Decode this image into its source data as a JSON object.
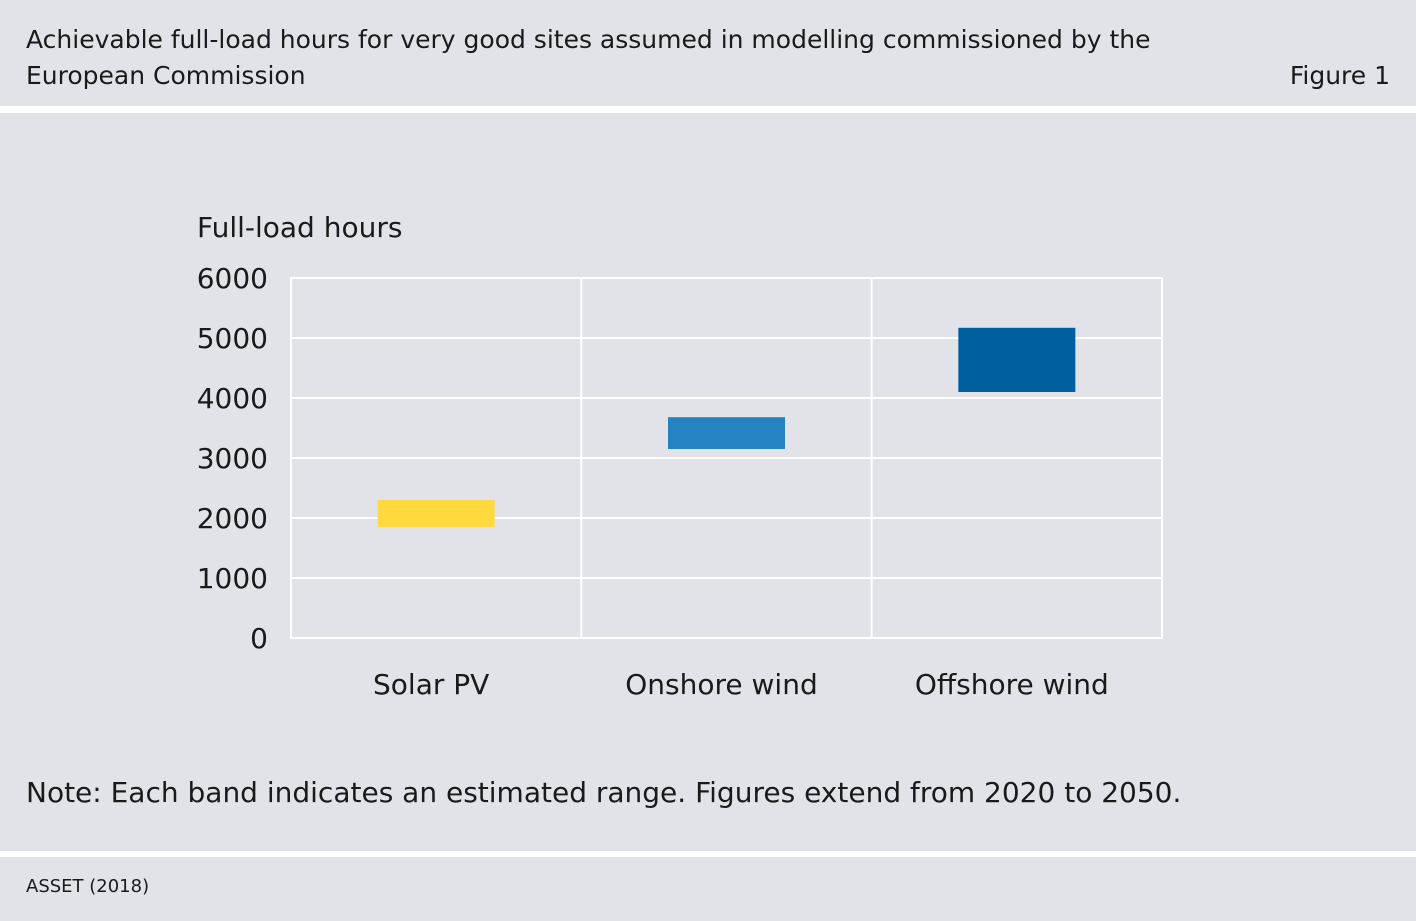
{
  "header": {
    "title": "Achievable full-load hours for very good sites assumed in modelling commissioned by the European Commission",
    "figure_label": "Figure 1"
  },
  "note": "Note: Each band indicates an estimated range. Figures extend from 2020 to 2050.",
  "source": "ASSET (2018)",
  "chart_data": {
    "type": "bar",
    "ylabel": "Full-load hours",
    "ylim": [
      0,
      6000
    ],
    "yticks": [
      0,
      1000,
      2000,
      3000,
      4000,
      5000,
      6000
    ],
    "categories": [
      "Solar PV",
      "Onshore wind",
      "Offshore wind"
    ],
    "ranges": [
      {
        "category": "Solar PV",
        "low": 1850,
        "high": 2300,
        "color": "#ffd93d"
      },
      {
        "category": "Onshore wind",
        "low": 3150,
        "high": 3680,
        "color": "#2583c4"
      },
      {
        "category": "Offshore wind",
        "low": 4100,
        "high": 5170,
        "color": "#005f9e"
      }
    ],
    "grid": true,
    "legend": "none"
  }
}
